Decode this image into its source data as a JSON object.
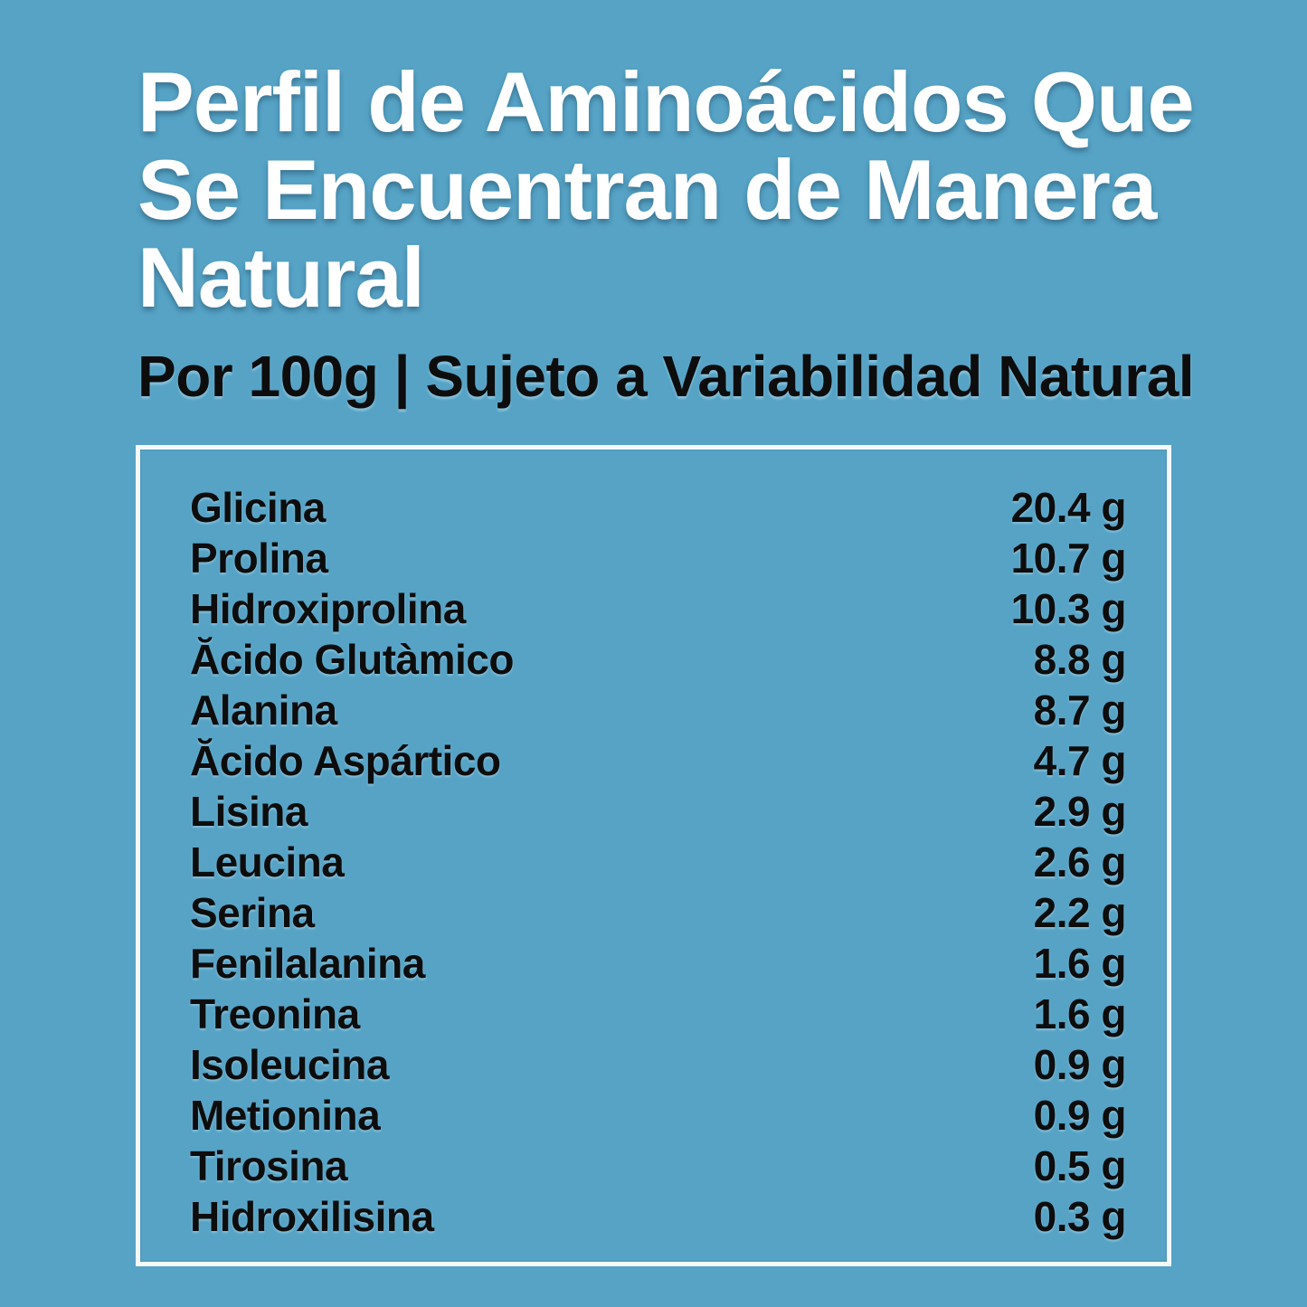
{
  "colors": {
    "background": "#56A3C6",
    "title": "#FFFFFF",
    "text": "#0D0D0D",
    "box_border": "#F5F9FB"
  },
  "header": {
    "title": "Perfil de Aminoácidos Que Se Encuentran de Manera Natural",
    "title_lines": [
      "Perfil de Aminoácidos Que",
      "Se Encuentran de Manera",
      "Natural"
    ],
    "subtitle": "Por 100g | Sujeto a Variabilidad Natural"
  },
  "table": {
    "rows": [
      {
        "name": "Glicina",
        "value": "20.4 g"
      },
      {
        "name": "Prolina",
        "value": "10.7 g"
      },
      {
        "name": "Hidroxiprolina",
        "value": "10.3 g"
      },
      {
        "name": "Ăcido Glutàmico",
        "value": "8.8 g"
      },
      {
        "name": "Alanina",
        "value": "8.7 g"
      },
      {
        "name": "Ăcido Aspártico",
        "value": "4.7 g"
      },
      {
        "name": "Lisina",
        "value": "2.9 g"
      },
      {
        "name": "Leucina",
        "value": "2.6 g"
      },
      {
        "name": "Serina",
        "value": "2.2 g"
      },
      {
        "name": "Fenilalanina",
        "value": "1.6 g"
      },
      {
        "name": "Treonina",
        "value": "1.6 g"
      },
      {
        "name": "Isoleucina",
        "value": "0.9 g"
      },
      {
        "name": "Metionina",
        "value": "0.9 g"
      },
      {
        "name": "Tirosina",
        "value": "0.5 g"
      },
      {
        "name": "Hidroxilisina",
        "value": "0.3 g"
      }
    ]
  }
}
